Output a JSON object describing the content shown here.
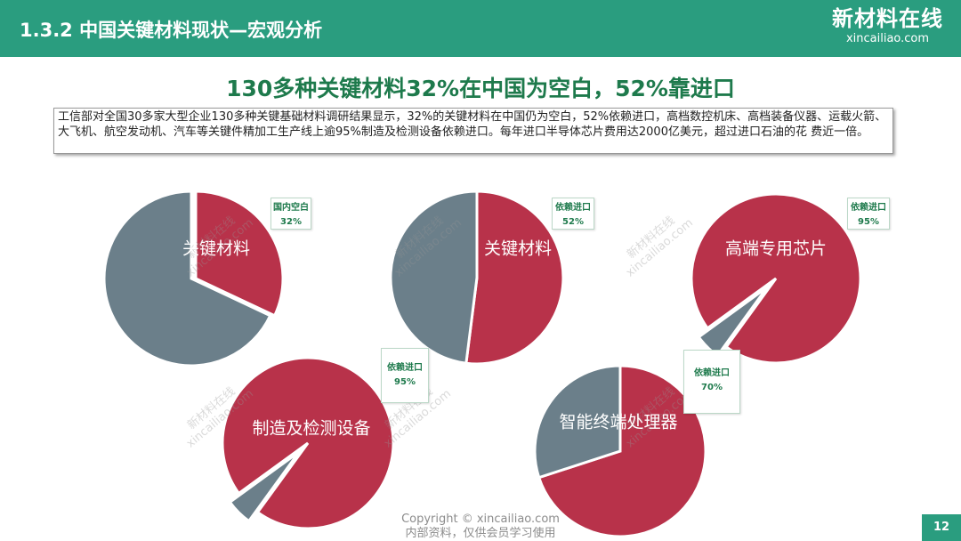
{
  "header": {
    "title": "1.3.2 中国关键材料现状—宏观分析",
    "logo_cn": "新材料在线",
    "logo_en": "xincailiao.com"
  },
  "headline": "130多种关键材料32%在中国为空白，52%靠进口",
  "description": "工信部对全国30多家大型企业130多种关键基础材料调研结果显示，32%的关键材料在中国仍为空白，52%依赖进口，高档数控机床、高档装备仪器、运载火箭、大飞机、航空发动机、汽车等关键件精加工生产线上逾95%制造及检测设备依赖进口。每年进口半导体芯片费用达2000亿美元，超过进口石油的花 费近一倍。",
  "watermark": {
    "cn": "新材料在线",
    "en": "xincailiao.com"
  },
  "colors": {
    "highlight": "#b8324a",
    "other": "#6b7f8a",
    "accent": "#2a9d7f",
    "callout_text": "#1e7a4c"
  },
  "chart_data": [
    {
      "type": "pie",
      "title": "关键材料",
      "callout_label": "国内空白",
      "callout_value": "32%",
      "slices": [
        {
          "name": "国内空白",
          "value": 32
        },
        {
          "name": "",
          "value": 68
        }
      ]
    },
    {
      "type": "pie",
      "title": "关键材料",
      "callout_label": "依赖进口",
      "callout_value": "52%",
      "slices": [
        {
          "name": "依赖进口",
          "value": 52
        },
        {
          "name": "",
          "value": 48
        }
      ]
    },
    {
      "type": "pie",
      "title": "高端专用芯片",
      "callout_label": "依赖进口",
      "callout_value": "95%",
      "slices": [
        {
          "name": "依赖进口",
          "value": 95
        },
        {
          "name": "",
          "value": 5
        }
      ]
    },
    {
      "type": "pie",
      "title": "制造及检测设备",
      "callout_label": "依赖进口",
      "callout_value": "95%",
      "slices": [
        {
          "name": "依赖进口",
          "value": 95
        },
        {
          "name": "",
          "value": 5
        }
      ]
    },
    {
      "type": "pie",
      "title": "智能终端处理器",
      "callout_label": "依赖进口",
      "callout_value": "70%",
      "slices": [
        {
          "name": "依赖进口",
          "value": 70
        },
        {
          "name": "",
          "value": 30
        }
      ]
    }
  ],
  "footer": {
    "copyright": "Copyright © xincailiao.com",
    "note": "内部资料，仅供会员学习使用"
  },
  "page_number": "12"
}
